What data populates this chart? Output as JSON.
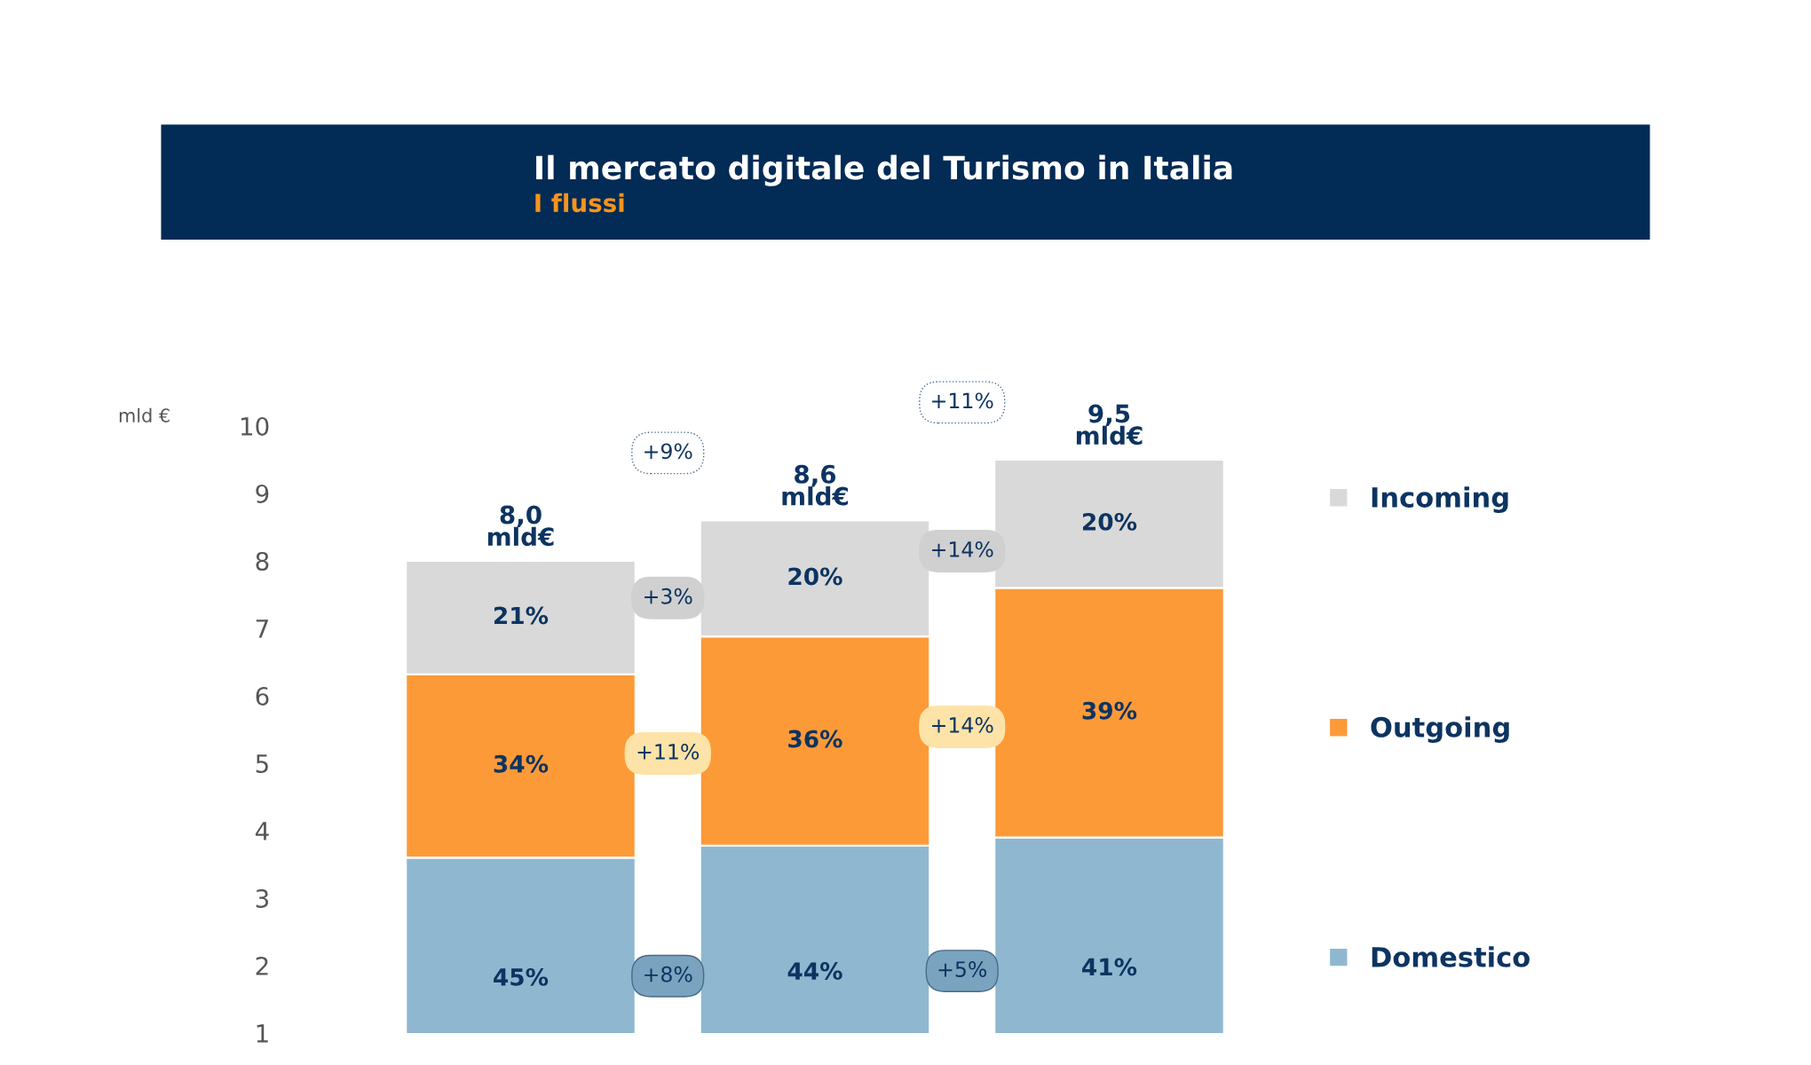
{
  "chart_data": {
    "type": "bar",
    "title": "Il mercato digitale del Turismo in Italia",
    "subtitle": "I flussi",
    "ylabel": "mld €",
    "categories": [
      null,
      null,
      null
    ],
    "stacked": true,
    "series": [
      {
        "name": "Domestico",
        "color": "#8fb8d0",
        "values": [
          3.6,
          3.78,
          3.9
        ]
      },
      {
        "name": "Outgoing",
        "color": "#fd9a38",
        "values": [
          2.72,
          3.1,
          3.7
        ]
      },
      {
        "name": "Incoming",
        "color": "#d9d9d9",
        "values": [
          1.68,
          1.72,
          1.9
        ]
      }
    ],
    "totals": [
      "8,0\nmld€",
      "8,6\nmld€",
      "9,5\nmld€"
    ],
    "annotations": [
      "45%",
      "44%",
      "41%",
      "34%",
      "36%",
      "39%",
      "21%",
      "20%",
      "20%",
      "+9%",
      "+3%",
      "+11%",
      "+8%",
      "+11%",
      "+14%",
      "+14%",
      "+5%"
    ],
    "ylim": [
      1,
      10
    ],
    "yticks": [
      1,
      2,
      3,
      4,
      5,
      6,
      7,
      8,
      9,
      10
    ],
    "grid": false,
    "legend": "right"
  }
}
